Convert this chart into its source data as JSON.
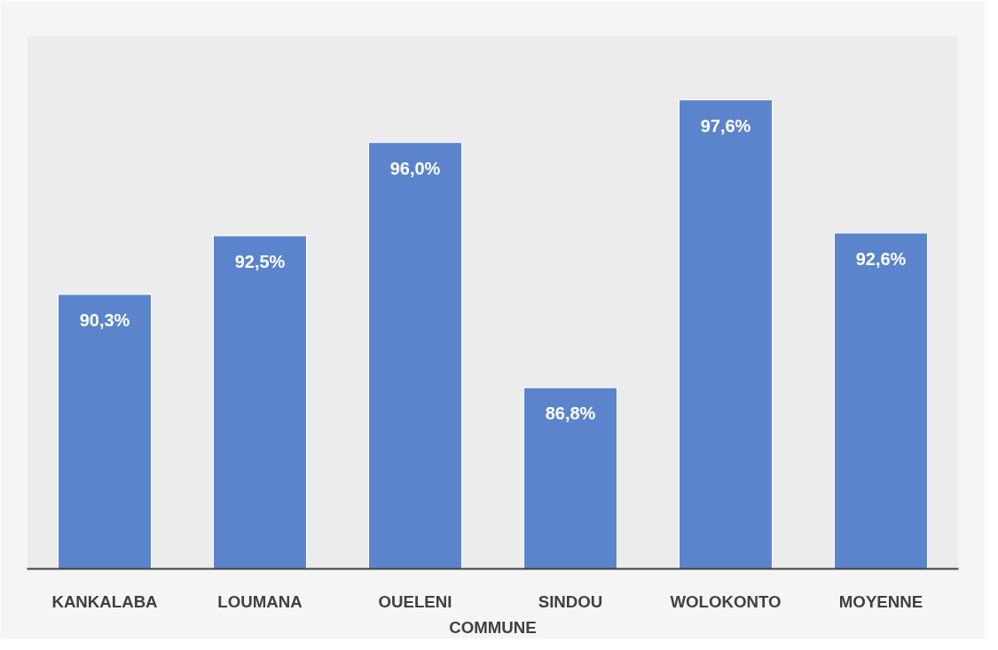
{
  "chart_data": {
    "type": "bar",
    "xlabel": "COMMUNE",
    "categories": [
      "KANKALABA",
      "LOUMANA",
      "OUELENI",
      "SINDOU",
      "WOLOKONTO",
      "MOYENNE"
    ],
    "values": [
      90.3,
      92.5,
      96.0,
      86.8,
      97.6,
      92.6
    ],
    "value_labels": [
      "90,3%",
      "92,5%",
      "96,0%",
      "86,8%",
      "97,6%",
      "92,6%"
    ],
    "color": "#5b84cc",
    "ylim": [
      80,
      100
    ],
    "tick_labels": "x"
  }
}
